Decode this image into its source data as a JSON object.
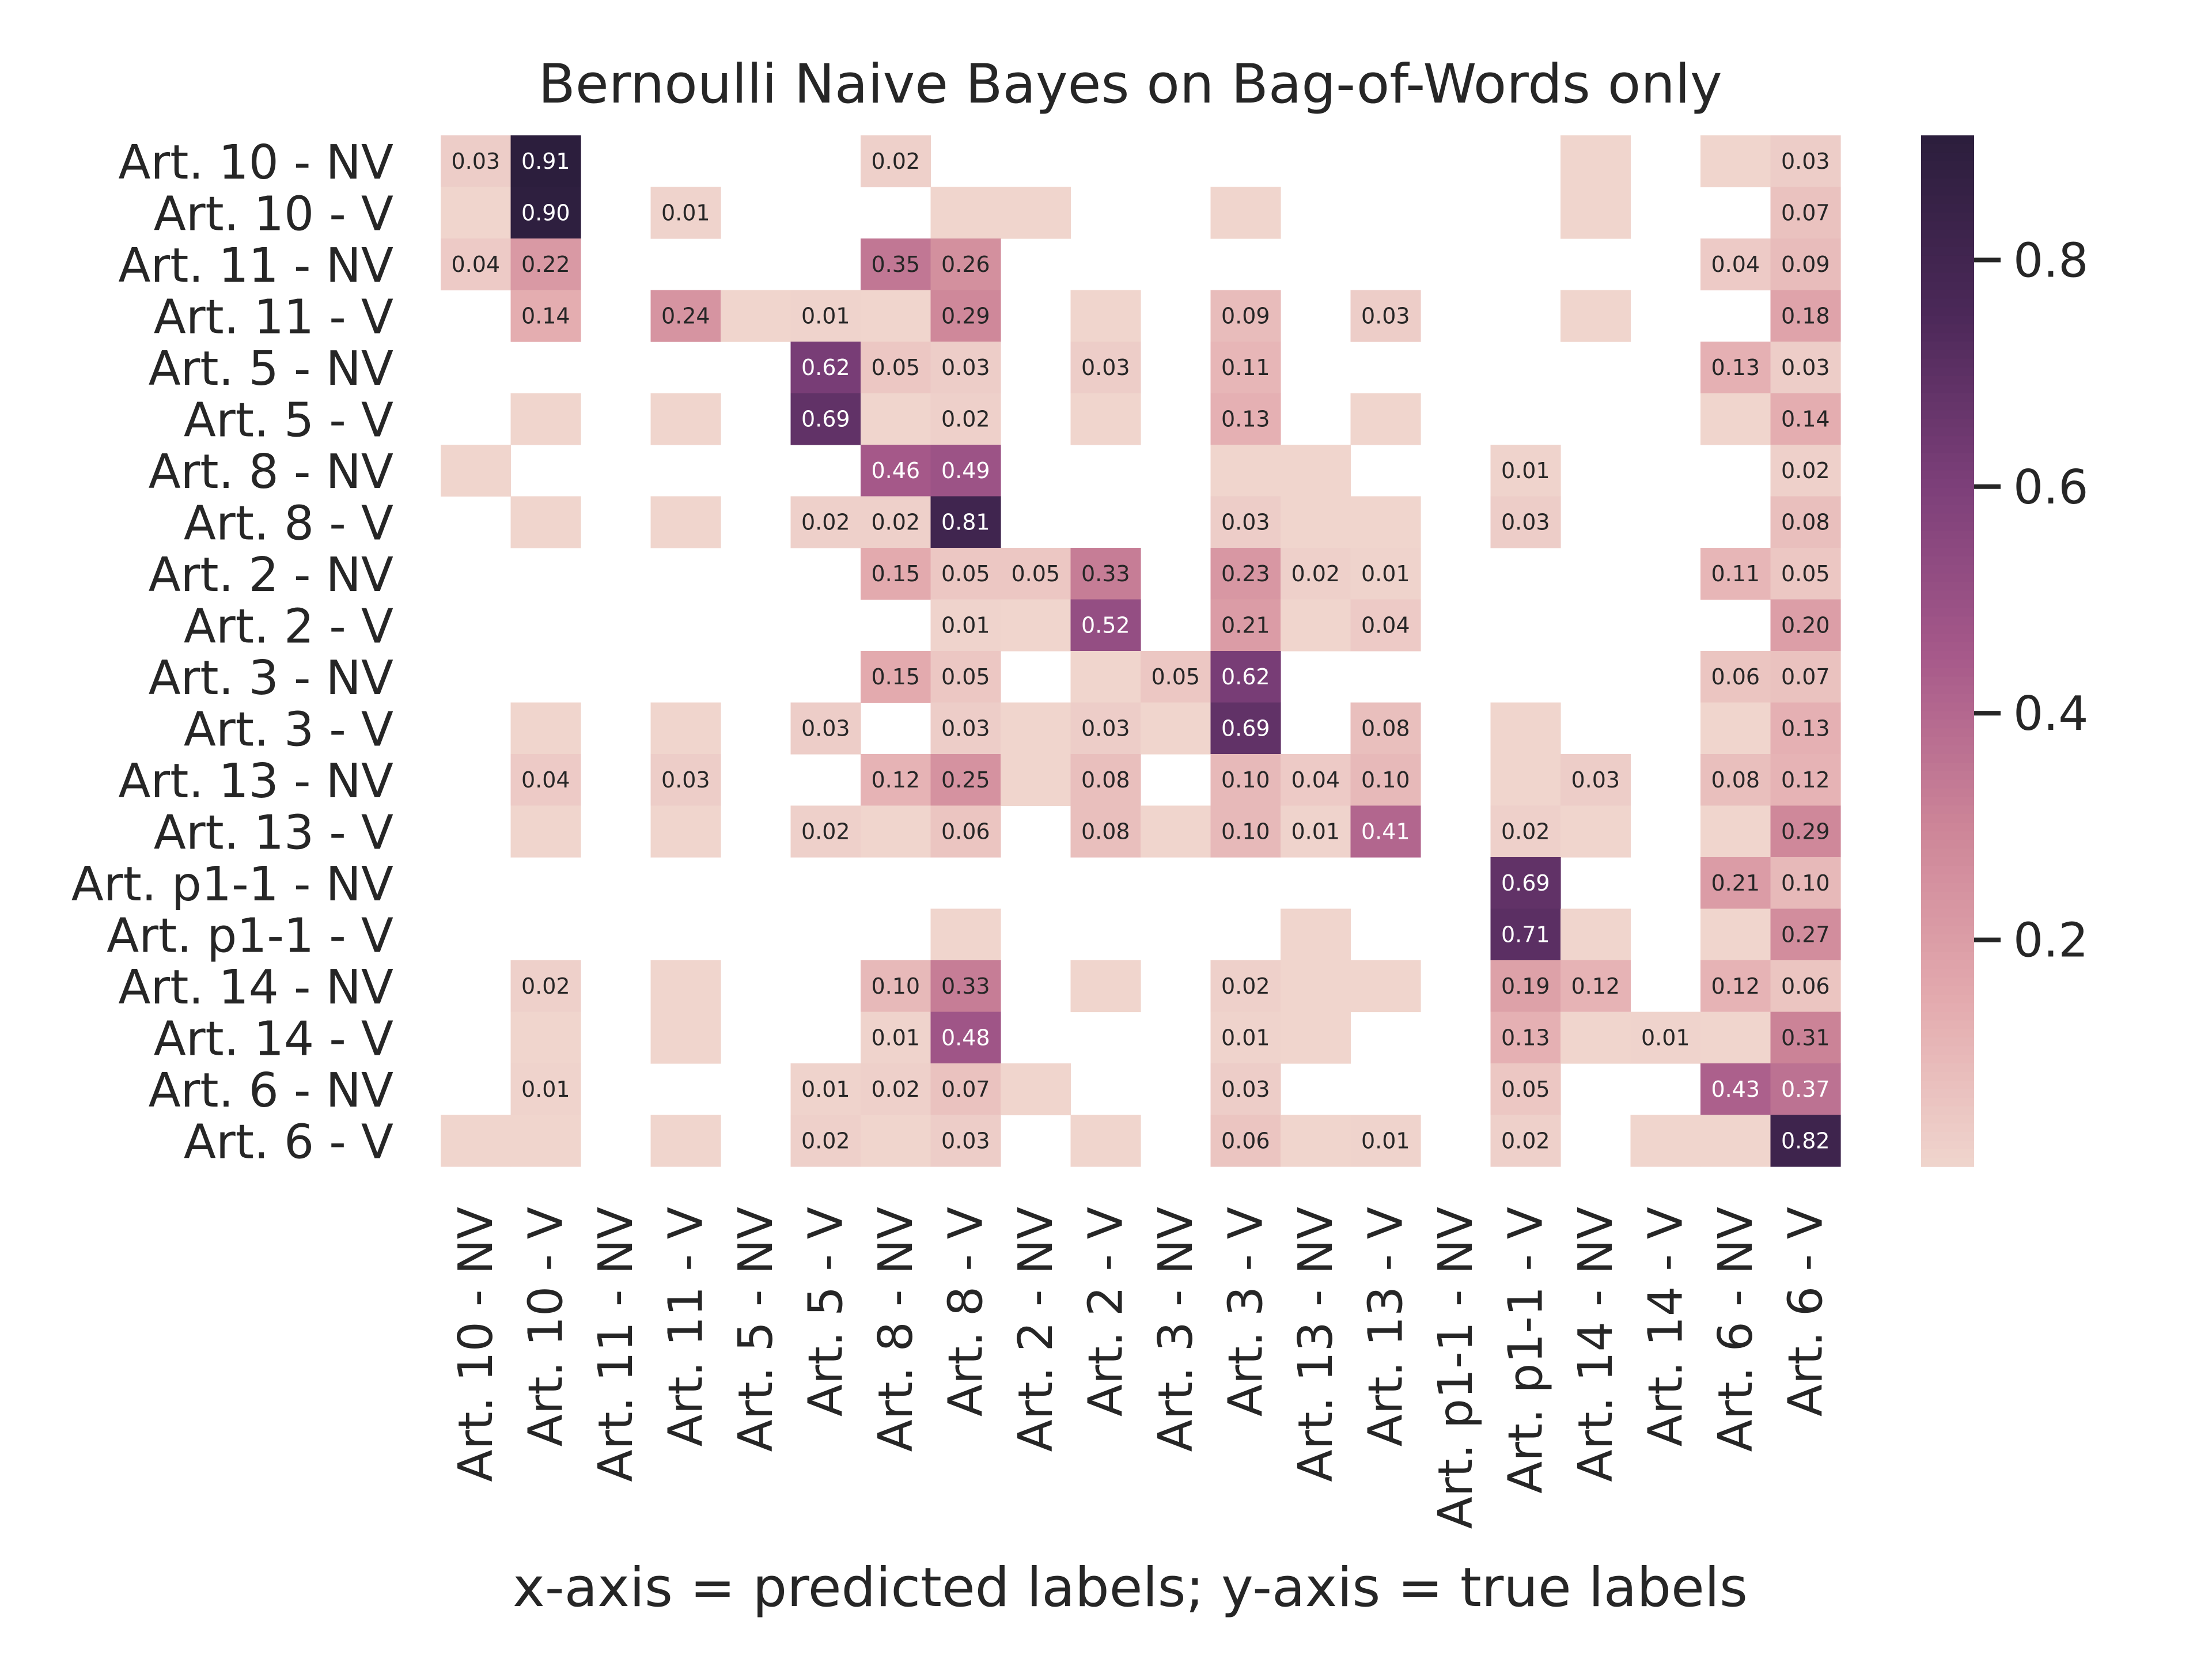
{
  "chart_data": {
    "type": "heatmap",
    "title": "Bernoulli Naive Bayes on Bag-of-Words only",
    "xlabel": "x-axis = predicted labels; y-axis = true labels",
    "ylabel": "",
    "labels": [
      "Art. 10 - NV",
      "Art. 10 - V",
      "Art. 11 - NV",
      "Art. 11 - V",
      "Art. 5 - NV",
      "Art. 5 - V",
      "Art. 8 - NV",
      "Art. 8 - V",
      "Art. 2 - NV",
      "Art. 2 - V",
      "Art. 3 - NV",
      "Art. 3 - V",
      "Art. 13 - NV",
      "Art. 13 - V",
      "Art. p1-1 - NV",
      "Art. p1-1 - V",
      "Art. 14 - NV",
      "Art. 14 - V",
      "Art. 6 - NV",
      "Art. 6 - V"
    ],
    "values": [
      [
        0.03,
        0.91,
        null,
        null,
        null,
        null,
        0.02,
        null,
        null,
        null,
        null,
        null,
        null,
        null,
        null,
        null,
        0.004,
        null,
        0.004,
        0.03
      ],
      [
        0.004,
        0.9,
        null,
        0.01,
        null,
        null,
        null,
        0.004,
        0.004,
        null,
        null,
        0.004,
        null,
        null,
        null,
        null,
        0.004,
        null,
        null,
        0.07
      ],
      [
        0.04,
        0.22,
        null,
        null,
        null,
        null,
        0.35,
        0.26,
        null,
        null,
        null,
        null,
        null,
        null,
        null,
        null,
        null,
        null,
        0.04,
        0.09
      ],
      [
        null,
        0.14,
        null,
        0.24,
        0.004,
        0.01,
        0.004,
        0.29,
        null,
        0.004,
        null,
        0.09,
        null,
        0.03,
        null,
        null,
        0.004,
        null,
        null,
        0.18
      ],
      [
        null,
        null,
        null,
        null,
        null,
        0.62,
        0.05,
        0.03,
        null,
        0.03,
        null,
        0.11,
        null,
        null,
        null,
        null,
        null,
        null,
        0.13,
        0.03
      ],
      [
        null,
        0.004,
        null,
        0.004,
        null,
        0.69,
        0.004,
        0.02,
        null,
        0.004,
        null,
        0.13,
        null,
        0.004,
        null,
        null,
        null,
        null,
        0.004,
        0.14
      ],
      [
        0.004,
        null,
        null,
        null,
        null,
        null,
        0.46,
        0.49,
        null,
        null,
        null,
        0.004,
        0.004,
        null,
        null,
        0.01,
        null,
        null,
        null,
        0.02
      ],
      [
        null,
        0.004,
        null,
        0.004,
        null,
        0.02,
        0.02,
        0.81,
        null,
        null,
        null,
        0.03,
        0.004,
        0.004,
        null,
        0.03,
        null,
        null,
        null,
        0.08
      ],
      [
        null,
        null,
        null,
        null,
        null,
        null,
        0.15,
        0.05,
        0.05,
        0.33,
        null,
        0.23,
        0.02,
        0.01,
        null,
        null,
        null,
        null,
        0.11,
        0.05
      ],
      [
        null,
        null,
        null,
        null,
        null,
        null,
        null,
        0.01,
        0.004,
        0.52,
        null,
        0.21,
        0.004,
        0.04,
        null,
        null,
        null,
        null,
        null,
        0.2
      ],
      [
        null,
        null,
        null,
        null,
        null,
        null,
        0.15,
        0.05,
        null,
        0.004,
        0.05,
        0.62,
        null,
        null,
        null,
        null,
        null,
        null,
        0.06,
        0.07
      ],
      [
        null,
        0.004,
        null,
        0.004,
        null,
        0.03,
        null,
        0.03,
        0.004,
        0.03,
        0.004,
        0.69,
        null,
        0.08,
        null,
        0.004,
        null,
        null,
        0.004,
        0.13
      ],
      [
        null,
        0.04,
        null,
        0.03,
        null,
        null,
        0.12,
        0.25,
        0.004,
        0.08,
        null,
        0.1,
        0.04,
        0.1,
        null,
        0.004,
        0.03,
        null,
        0.08,
        0.12
      ],
      [
        null,
        0.004,
        null,
        0.004,
        null,
        0.02,
        0.004,
        0.06,
        null,
        0.08,
        0.004,
        0.1,
        0.01,
        0.41,
        null,
        0.02,
        0.004,
        null,
        0.004,
        0.29
      ],
      [
        null,
        null,
        null,
        null,
        null,
        null,
        null,
        null,
        null,
        null,
        null,
        null,
        null,
        null,
        null,
        0.69,
        null,
        null,
        0.21,
        0.1
      ],
      [
        null,
        null,
        null,
        null,
        null,
        null,
        null,
        0.004,
        null,
        null,
        null,
        null,
        0.004,
        null,
        null,
        0.71,
        0.004,
        null,
        0.004,
        0.27
      ],
      [
        null,
        0.02,
        null,
        0.004,
        null,
        null,
        0.1,
        0.33,
        null,
        0.004,
        null,
        0.02,
        0.004,
        0.004,
        null,
        0.19,
        0.12,
        null,
        0.12,
        0.06
      ],
      [
        null,
        0.004,
        null,
        0.004,
        null,
        null,
        0.01,
        0.48,
        null,
        null,
        null,
        0.01,
        0.004,
        null,
        null,
        0.13,
        0.004,
        0.01,
        0.004,
        0.31
      ],
      [
        null,
        0.01,
        null,
        null,
        null,
        0.01,
        0.02,
        0.07,
        0.004,
        null,
        null,
        0.03,
        null,
        null,
        null,
        0.05,
        null,
        null,
        0.43,
        0.37
      ],
      [
        0.004,
        0.004,
        null,
        0.004,
        null,
        0.02,
        0.004,
        0.03,
        null,
        0.004,
        null,
        0.06,
        0.004,
        0.01,
        null,
        0.02,
        null,
        0.004,
        0.004,
        0.82
      ]
    ],
    "colorbar": {
      "min": 0.0,
      "max": 0.91,
      "ticks": [
        0.2,
        0.4,
        0.6,
        0.8
      ],
      "tick_labels": [
        "0.2",
        "0.4",
        "0.6",
        "0.8"
      ]
    },
    "annotation_format": "2 decimals, values below 0.005 not annotated",
    "colormap": [
      "#f0d6ce",
      "#e3aaae",
      "#cd8598",
      "#a6598a",
      "#7c3f79",
      "#4b2858",
      "#2c1e3d"
    ],
    "grid": false,
    "legend": "colorbar right"
  }
}
